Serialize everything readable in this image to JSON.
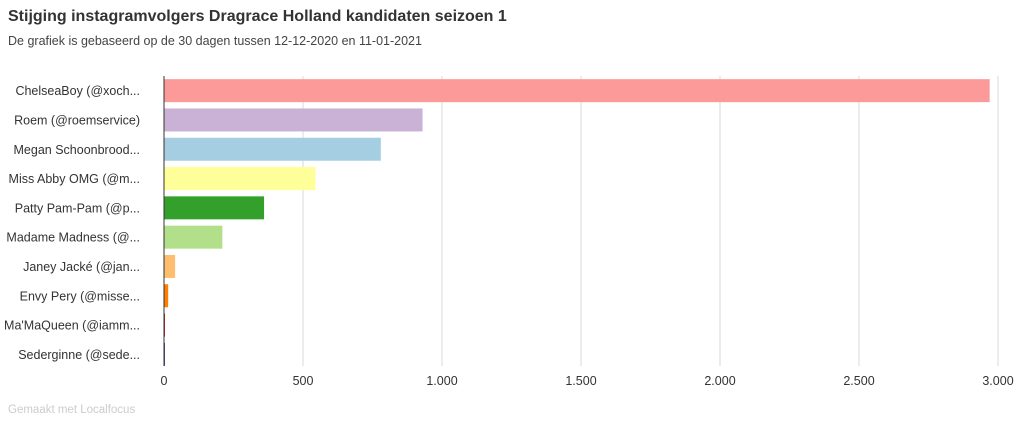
{
  "title": "Stijging instagramvolgers Dragrace Holland kandidaten seizoen 1",
  "subtitle": "De grafiek is gebaseerd op de 30 dagen tussen 12-12-2020 en 11-01-2021",
  "footer": "Gemaakt met Localfocus",
  "chart_data": {
    "type": "bar",
    "orientation": "horizontal",
    "title": "Stijging instagramvolgers Dragrace Holland kandidaten seizoen 1",
    "subtitle": "De grafiek is gebaseerd op de 30 dagen tussen 12-12-2020 en 11-01-2021",
    "xlabel": "",
    "ylabel": "",
    "xlim": [
      0,
      3000
    ],
    "ticks": [
      0,
      500,
      1000,
      1500,
      2000,
      2500,
      3000
    ],
    "tick_labels": [
      "0",
      "500",
      "1.000",
      "1.500",
      "2.000",
      "2.500",
      "3.000"
    ],
    "grid": true,
    "categories": [
      "ChelseaBoy (@xoch...",
      "Roem (@roemservice)",
      "Megan Schoonbrood...",
      "Miss Abby OMG (@m...",
      "Patty Pam-Pam (@p...",
      "Madame Madness (@...",
      "Janey Jacké (@jan...",
      "Envy Pery (@misse...",
      "Ma'MaQueen (@iamm...",
      "Sederginne (@sede..."
    ],
    "values": [
      2970,
      930,
      780,
      545,
      360,
      210,
      40,
      15,
      3,
      1
    ],
    "colors": [
      "#fb9a99",
      "#cab2d6",
      "#a6cee3",
      "#ffff99",
      "#33a02c",
      "#b2df8a",
      "#fdbf6f",
      "#ff7f00",
      "#e31a1c",
      "#6a3d9a"
    ]
  }
}
